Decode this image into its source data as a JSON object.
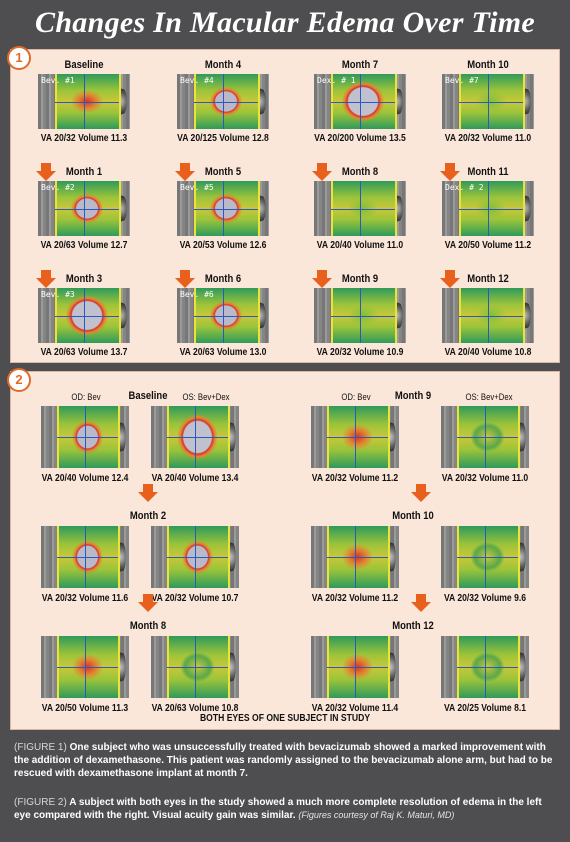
{
  "title": "Changes In Macular Edema Over Time",
  "figure1": {
    "number": "1",
    "cells": [
      {
        "label": "Baseline",
        "tag": "Bev. #1",
        "caption": "VA 20/32 Volume 11.3",
        "edema": "medium"
      },
      {
        "label": "Month 4",
        "tag": "Bev. #4",
        "caption": "VA 20/125 Volume 12.8",
        "edema": "large"
      },
      {
        "label": "Month 7",
        "tag": "Dex. # 1",
        "caption": "VA 20/200 Volume 13.5",
        "edema": "xlarge"
      },
      {
        "label": "Month 10",
        "tag": "Bev. #7",
        "caption": "VA 20/32 Volume 11.0",
        "edema": "none"
      },
      {
        "label": "Month 1",
        "tag": "Bev. #2",
        "caption": "VA 20/63 Volume 12.7",
        "edema": "large"
      },
      {
        "label": "Month 5",
        "tag": "Bev. #5",
        "caption": "VA 20/53 Volume 12.6",
        "edema": "large"
      },
      {
        "label": "Month 8",
        "tag": "",
        "caption": "VA 20/40 Volume 11.0",
        "edema": "none"
      },
      {
        "label": "Month 11",
        "tag": "Dex. # 2",
        "caption": "VA 20/50 Volume 11.2",
        "edema": "none"
      },
      {
        "label": "Month 3",
        "tag": "Bev. #3",
        "caption": "VA 20/63 Volume 13.7",
        "edema": "xlarge"
      },
      {
        "label": "Month 6",
        "tag": "Bev. #6",
        "caption": "VA 20/63 Volume 13.0",
        "edema": "large"
      },
      {
        "label": "Month 9",
        "tag": "",
        "caption": "VA 20/32 Volume 10.9",
        "edema": "none"
      },
      {
        "label": "Month 12",
        "tag": "",
        "caption": "VA 20/40 Volume 10.8",
        "edema": "none"
      }
    ]
  },
  "figure2": {
    "number": "2",
    "od_label": "OD: Bev",
    "os_label": "OS: Bev+Dex",
    "footer": "BOTH EYES OF ONE SUBJECT IN STUDY",
    "left_rows": [
      {
        "label": "Baseline",
        "od_caption": "VA 20/40 Volume 12.4",
        "os_caption": "VA 20/40 Volume 13.4",
        "od": "large",
        "os": "xlarge"
      },
      {
        "label": "Month 2",
        "od_caption": "VA 20/32 Volume 11.6",
        "os_caption": "VA 20/32 Volume 10.7",
        "od": "large",
        "os": "large"
      },
      {
        "label": "Month 8",
        "od_caption": "VA 20/50 Volume 11.3",
        "os_caption": "VA 20/63 Volume 10.8",
        "od": "medium",
        "os": "low"
      }
    ],
    "right_rows": [
      {
        "label": "Month 9",
        "od_caption": "VA 20/32 Volume 11.2",
        "os_caption": "VA 20/32 Volume 11.0",
        "od": "medium",
        "os": "low"
      },
      {
        "label": "Month 10",
        "od_caption": "VA 20/32 Volume 11.2",
        "os_caption": "VA 20/32 Volume 9.6",
        "od": "medium",
        "os": "low"
      },
      {
        "label": "Month 12",
        "od_caption": "VA 20/32 Volume 11.4",
        "os_caption": "VA 20/25 Volume 8.1",
        "od": "medium",
        "os": "low"
      }
    ]
  },
  "captions": {
    "fig1_tag": "(FIGURE 1)",
    "fig1_text": "One subject who was unsuccessfully treated with bevacizumab showed a marked improvement with the addition of dexamethasone. This patient was randomly assigned to the bevacizumab alone arm, but had to be rescued with dexamethasone implant at month 7.",
    "fig2_tag": "(FIGURE 2)",
    "fig2_text": "A subject with both eyes in the study showed a much more complete resolution of edema in the left eye compared with the right. Visual acuity gain was similar.",
    "courtesy": "(Figures courtesy of Raj K. Maturi, MD)"
  },
  "colors": {
    "accent": "#e8601c",
    "panel": "#fbe7da",
    "background": "#4e4e50"
  }
}
